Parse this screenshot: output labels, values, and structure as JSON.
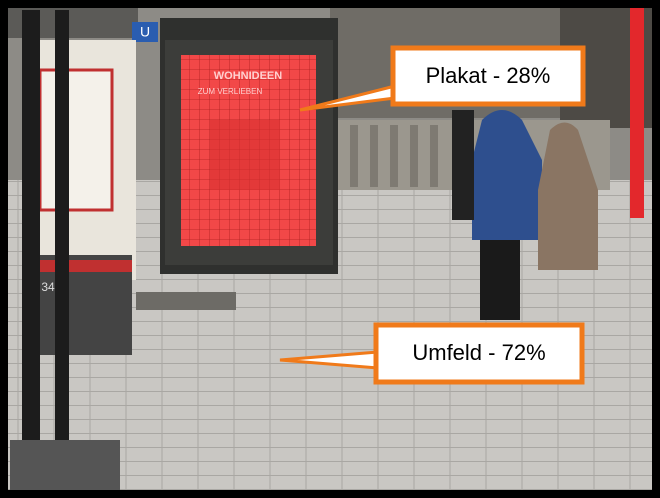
{
  "callouts": [
    {
      "label": "Plakat - 28%"
    },
    {
      "label": "Umfeld - 72%"
    }
  ],
  "scene_text": {
    "poster_title": "WOHNIDEEN",
    "poster_subtitle": "ZUM VERLIEBEN",
    "station_sign": "U",
    "pole_number": "34"
  }
}
